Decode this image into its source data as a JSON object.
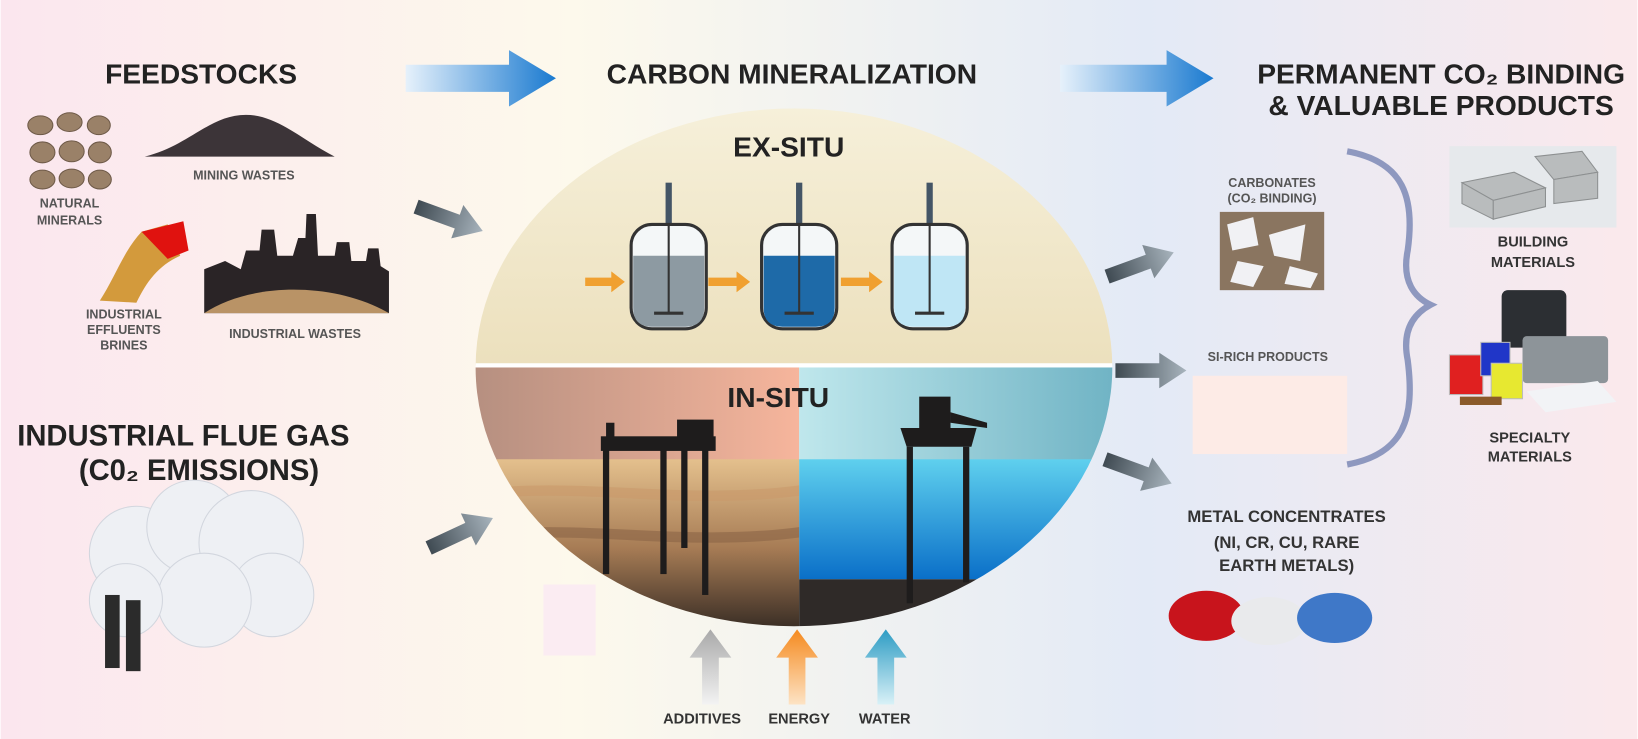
{
  "header": {
    "feedstocks": "FEEDSTOCKS",
    "process": "CARBON MINERALIZATION",
    "products": [
      "PERMANENT CO₂ BINDING",
      "& VALUABLE PRODUCTS"
    ]
  },
  "feedstocks": {
    "natural_minerals": [
      "NATURAL",
      "MINERALS"
    ],
    "mining_wastes": "MINING WASTES",
    "effluents": [
      "INDUSTRIAL",
      "EFFLUENTS",
      "BRINES"
    ],
    "industrial_wastes": "INDUSTRIAL WASTES",
    "flue_gas": [
      "INDUSTRIAL FLUE GAS",
      "(C0₂ EMISSIONS)"
    ]
  },
  "process": {
    "ex_situ": "EX-SITU",
    "in_situ": "IN-SITU",
    "inputs": [
      "ADDITIVES",
      "ENERGY",
      "WATER"
    ]
  },
  "products": {
    "carbonates": [
      "CARBONATES",
      "(CO₂ BINDING)"
    ],
    "si_rich": "SI-RICH PRODUCTS",
    "metals": [
      "METAL CONCENTRATES",
      "(NI, CR, CU, RARE",
      "EARTH METALS)"
    ],
    "building": [
      "BUILDING",
      "MATERIALS"
    ],
    "specialty": [
      "SPECIALTY",
      "MATERIALS"
    ]
  }
}
